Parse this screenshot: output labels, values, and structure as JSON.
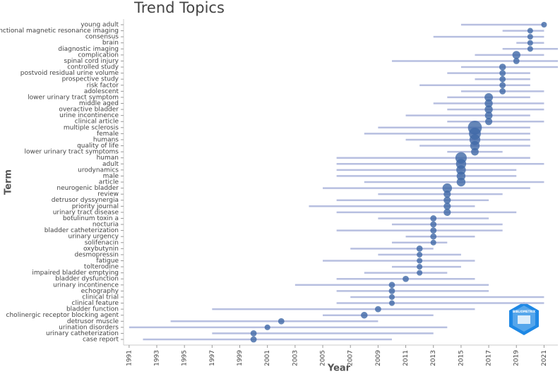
{
  "chart_data": {
    "type": "trend",
    "title": "Trend Topics",
    "x_label": "Year",
    "y_label": "Term",
    "logo_text": "BIBLIOMETRIX",
    "categories": [
      "young adult",
      "functional magnetic resonance imaging",
      "consensus",
      "brain",
      "diagnostic imaging",
      "complication",
      "spinal cord injury",
      "controlled study",
      "postvoid residual urine volume",
      "prospective study",
      "risk factor",
      "adolescent",
      "lower urinary tract symptom",
      "middle aged",
      "overactive bladder",
      "urine incontinence",
      "clinical article",
      "multiple sclerosis",
      "female",
      "humans",
      "quality of life",
      "lower urinary tract symptoms",
      "human",
      "adult",
      "urodynamics",
      "male",
      "article",
      "neurogenic bladder",
      "review",
      "detrusor dyssynergia",
      "priority journal",
      "urinary tract disease",
      "botulinum toxin a",
      "nocturia",
      "bladder catheterization",
      "urinary urgency",
      "solifenacin",
      "oxybutynin",
      "desmopressin",
      "fatigue",
      "tolterodine",
      "impaired bladder emptying",
      "bladder dysfunction",
      "urinary incontinence",
      "echography",
      "clinical trial",
      "clinical feature",
      "bladder function",
      "cholinergic receptor blocking agent",
      "detrusor muscle",
      "urination disorders",
      "urinary catheterization",
      "case report"
    ],
    "q1": [
      2015,
      2018,
      2013,
      2019,
      2018,
      2016,
      2010,
      2015,
      2014,
      2016,
      2012,
      2015,
      2014,
      2013,
      2014,
      2011,
      2014,
      2009,
      2008,
      2011,
      2012,
      2014,
      2006,
      2006,
      2006,
      2006,
      2008,
      2005,
      2009,
      2006,
      2004,
      2006,
      2009,
      2010,
      2006,
      2011,
      2010,
      2007,
      2009,
      2005,
      2010,
      2008,
      2006,
      2003,
      2006,
      2007,
      2006,
      1997,
      2005,
      1994,
      1991,
      1997,
      1992
    ],
    "median": [
      2021,
      2020,
      2020,
      2020,
      2020,
      2019,
      2019,
      2018,
      2018,
      2018,
      2018,
      2018,
      2017,
      2017,
      2017,
      2017,
      2017,
      2016,
      2016,
      2016,
      2016,
      2016,
      2015,
      2015,
      2015,
      2015,
      2015,
      2014,
      2014,
      2014,
      2014,
      2014,
      2013,
      2013,
      2013,
      2013,
      2013,
      2012,
      2012,
      2012,
      2012,
      2012,
      2011,
      2010,
      2010,
      2010,
      2010,
      2009,
      2008,
      2002,
      2001,
      2000,
      2000
    ],
    "q3": [
      2021,
      2021,
      2021,
      2021,
      2022,
      2021,
      2022,
      2022,
      2020,
      2020,
      2020,
      2021,
      2020,
      2021,
      2021,
      2020,
      2021,
      2020,
      2020,
      2020,
      2020,
      2018,
      2020,
      2021,
      2019,
      2019,
      2021,
      2020,
      2018,
      2017,
      2016,
      2019,
      2017,
      2018,
      2018,
      2016,
      2014,
      2013,
      2015,
      2016,
      2015,
      2014,
      2016,
      2017,
      2017,
      2021,
      2021,
      2016,
      2013,
      2009,
      2014,
      2013,
      2010
    ],
    "frequency": [
      5,
      5,
      5,
      5,
      5,
      10,
      6,
      7,
      6,
      6,
      6,
      6,
      11,
      10,
      10,
      9,
      8,
      30,
      22,
      18,
      14,
      9,
      20,
      16,
      14,
      12,
      12,
      14,
      8,
      8,
      8,
      8,
      6,
      6,
      6,
      6,
      5,
      6,
      5,
      5,
      5,
      5,
      6,
      6,
      6,
      5,
      5,
      6,
      7,
      6,
      5,
      6,
      6
    ],
    "line_color": "#b7bfe0",
    "point_color": "#3f68a6",
    "xlim": [
      1990.6,
      2022
    ],
    "xticks": [
      1991,
      1993,
      1995,
      1997,
      1999,
      2001,
      2003,
      2005,
      2007,
      2009,
      2011,
      2013,
      2015,
      2017,
      2019,
      2021
    ]
  }
}
